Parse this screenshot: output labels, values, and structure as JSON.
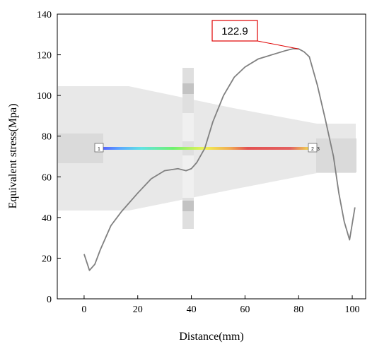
{
  "chart_data": {
    "type": "line",
    "xlabel": "Distance(mm)",
    "ylabel": "Equivalent stress(Mpa)",
    "xlim": [
      -10,
      105
    ],
    "ylim": [
      0,
      140
    ],
    "x_ticks": [
      0,
      20,
      40,
      60,
      80,
      100
    ],
    "y_ticks": [
      0,
      20,
      40,
      60,
      80,
      100,
      120,
      140
    ],
    "grid": false,
    "series": [
      {
        "color": "#808080",
        "x": [
          0,
          2,
          4,
          6,
          8,
          10,
          14,
          20,
          25,
          30,
          35,
          38,
          40,
          42,
          45,
          48,
          52,
          56,
          60,
          65,
          70,
          75,
          78,
          80,
          82,
          84,
          87,
          90,
          93,
          95,
          97,
          99,
          101
        ],
        "y": [
          22,
          14,
          17,
          24,
          30,
          36,
          43,
          52,
          59,
          63,
          64,
          63,
          64,
          67,
          74,
          87,
          100,
          109,
          114,
          118,
          120,
          122,
          123,
          122.9,
          121.5,
          119,
          105,
          88,
          70,
          52,
          38,
          29,
          45
        ]
      }
    ],
    "annotations": [
      {
        "text": "122.9",
        "x": 80,
        "y": 122.9
      }
    ],
    "background_labels": [
      "1",
      "2",
      "3"
    ]
  }
}
